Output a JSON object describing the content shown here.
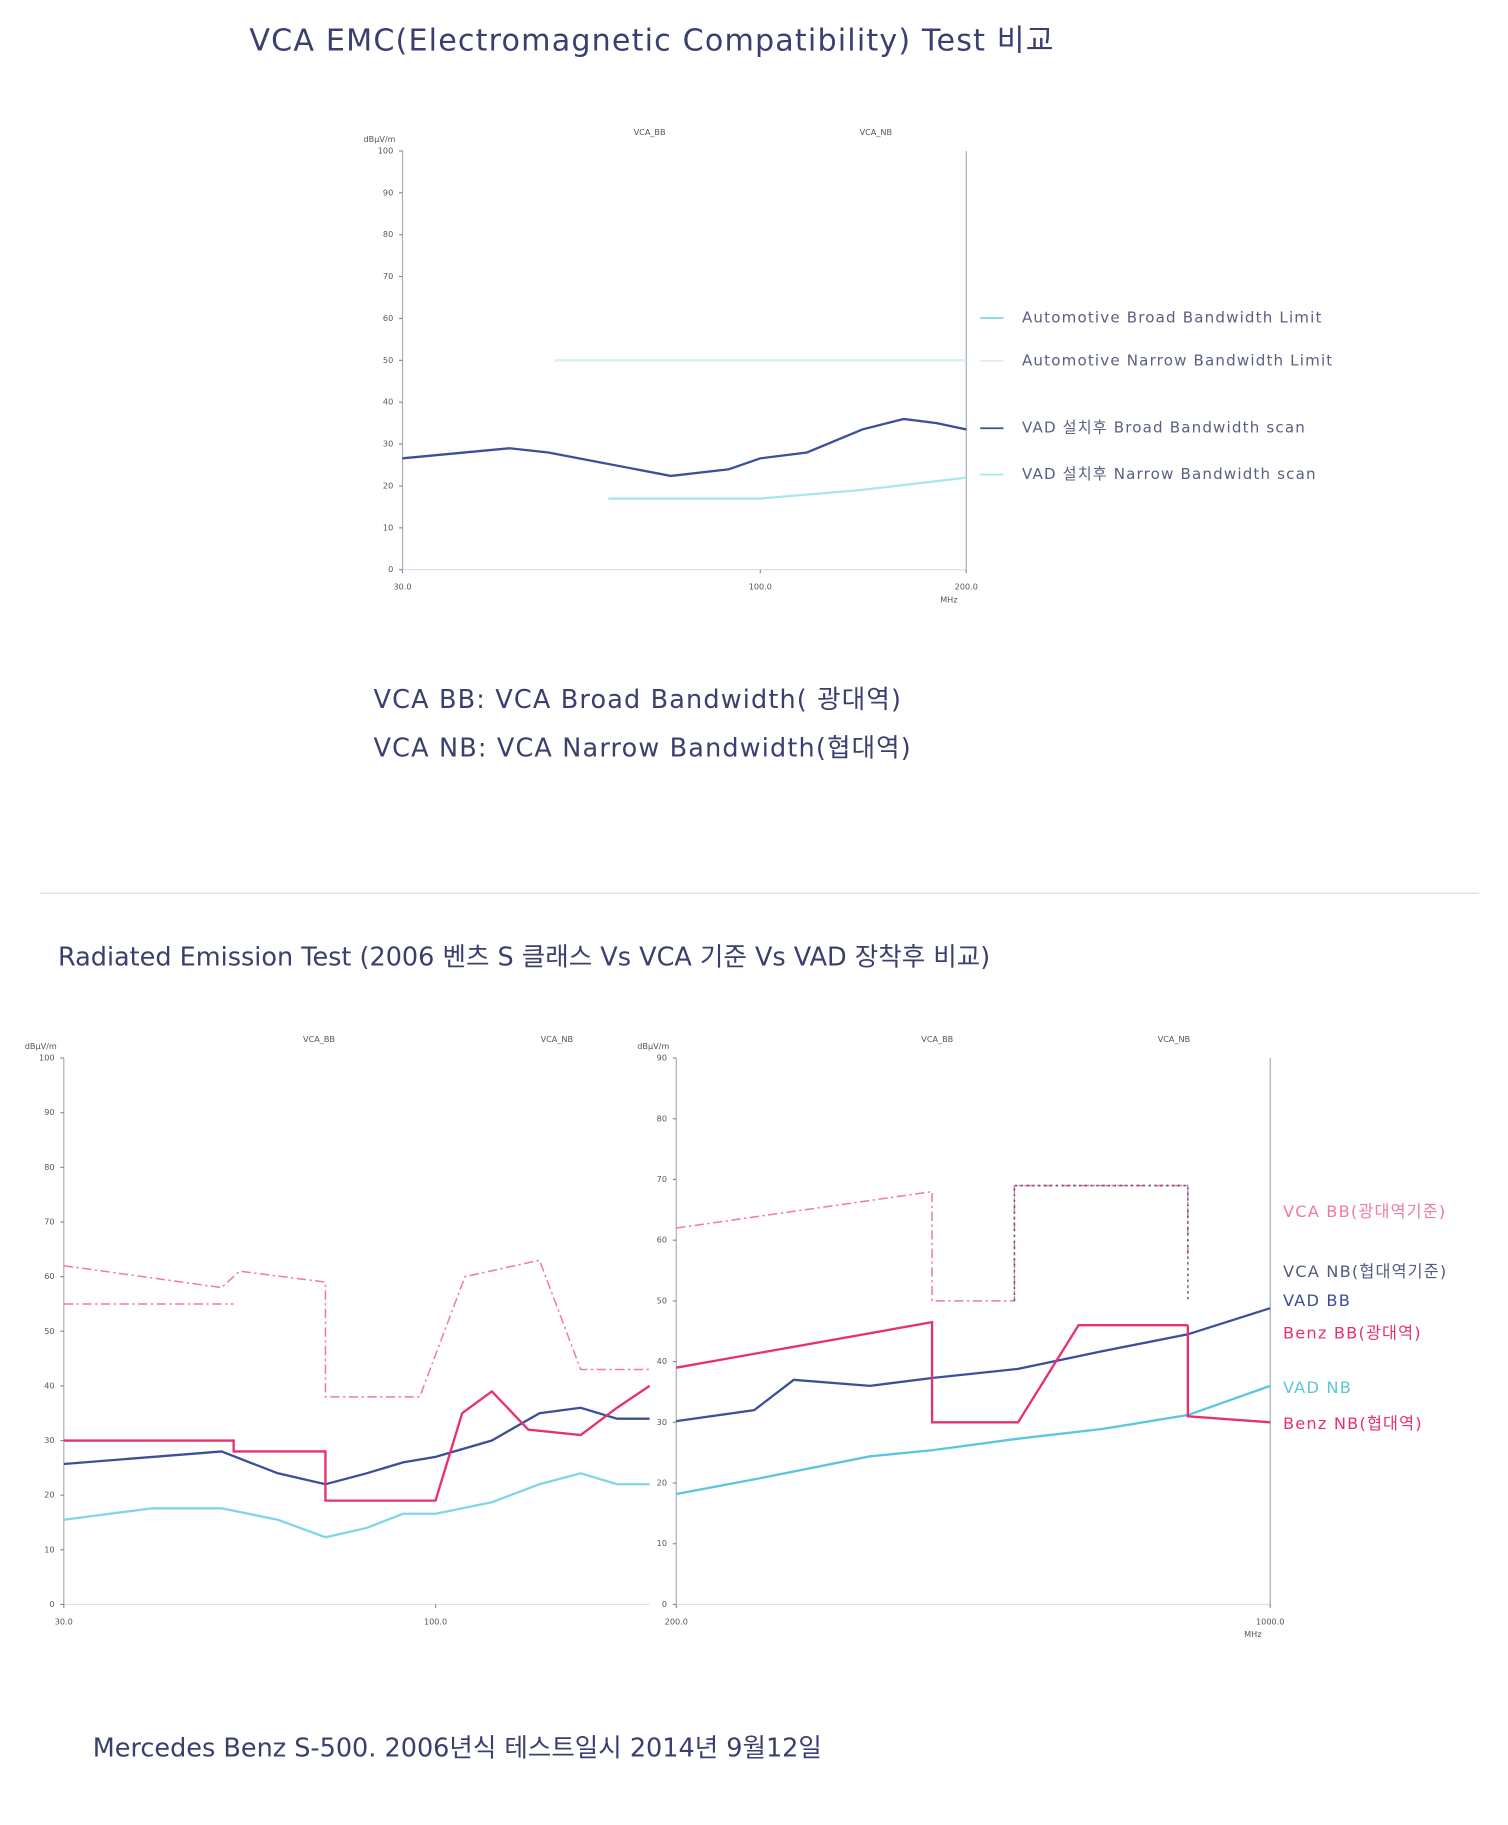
{
  "title": "VCA EMC(Electromagnetic Compatibility) Test 비교",
  "notes": [
    "VCA  BB:  VCA Broad Bandwidth( 광대역)",
    "VCA   NB: VCA Narrow Bandwidth(협대역)"
  ],
  "section_title": "Radiated Emission Test (2006 벤츠 S 클래스 Vs VCA 기준 Vs VAD 장착후 비교)",
  "footer": "Mercedes Benz S-500. 2006년식  테스트일시 2014년 9월12일",
  "chart_data": [
    {
      "type": "line",
      "y_label": "dBµV/m",
      "x_label": "MHz",
      "top_labels": [
        "VCA_BB",
        "VCA_NB"
      ],
      "xlim": [
        30,
        200
      ],
      "xscale": "log",
      "xticks": [
        {
          "value": 30,
          "label": "30.0"
        },
        {
          "value": 100,
          "label": "100.0"
        },
        {
          "value": 200,
          "label": "200.0"
        }
      ],
      "ylim": [
        0,
        100
      ],
      "yticks": [
        0,
        10,
        20,
        30,
        40,
        50,
        60,
        70,
        80,
        90,
        100
      ],
      "series": [
        {
          "name": "Automotive Broad Bandwidth Limit",
          "color": "#7fd6e6",
          "x": [
            30,
            200
          ],
          "values": [
            null,
            null
          ]
        },
        {
          "name": "Automotive Narrow  Bandwidth Limit",
          "color": "#d8eef2",
          "x": [
            50,
            200
          ],
          "values": [
            50,
            50
          ]
        },
        {
          "name": "VAD 설치후 Broad Bandwidth scan",
          "color": "#3b4f9a",
          "x": [
            30,
            43,
            49,
            74,
            90,
            100,
            117,
            141,
            162,
            181,
            200
          ],
          "values": [
            26.6,
            29,
            28,
            22.4,
            24,
            26.6,
            28,
            33.5,
            36,
            35,
            33.5
          ]
        },
        {
          "name": "VAD 설치후 Narrow Bandwidth scan",
          "color": "#a9e6f0",
          "x": [
            60,
            100,
            140,
            200
          ],
          "values": [
            17,
            17,
            19,
            22
          ]
        }
      ]
    },
    {
      "type": "line",
      "y_label": "dBµV/m",
      "top_labels": [
        "VCA_BB",
        "VCA_NB"
      ],
      "xlim": [
        30,
        200
      ],
      "xscale": "log",
      "xticks": [
        {
          "value": 30,
          "label": "30.0"
        },
        {
          "value": 100,
          "label": "100.0"
        }
      ],
      "ylim": [
        0,
        100
      ],
      "yticks": [
        0,
        10,
        20,
        30,
        40,
        50,
        60,
        70,
        80,
        90,
        100
      ],
      "series": [
        {
          "name": "VCA BB",
          "color": "#f07aa6",
          "dash": "dashdot",
          "x": [
            30,
            50,
            53,
            70,
            70,
            95,
            110,
            140,
            160,
            200
          ],
          "values": [
            62,
            58,
            61,
            59,
            38,
            38,
            60,
            63,
            43,
            43
          ]
        },
        {
          "name": "VCA NB",
          "color": "#f07aa6",
          "dash": "dashdot",
          "x": [
            30,
            52
          ],
          "values": [
            55,
            55
          ]
        },
        {
          "name": "VAD BB",
          "color": "#3b4f9a",
          "x": [
            30,
            40,
            50,
            60,
            70,
            80,
            90,
            100,
            120,
            140,
            160,
            180,
            200
          ],
          "values": [
            25.7,
            27,
            28,
            24,
            22,
            24,
            26,
            27,
            30,
            35,
            36,
            34,
            34
          ]
        },
        {
          "name": "Benz BB",
          "color": "#e8306c",
          "x": [
            30,
            52,
            52,
            70,
            70,
            100,
            109,
            120,
            135,
            160,
            180,
            200
          ],
          "values": [
            30,
            30,
            28,
            28,
            19,
            19,
            35,
            39,
            32,
            31,
            36,
            40
          ]
        },
        {
          "name": "VAD NB",
          "color": "#7fd6e6",
          "x": [
            30,
            40,
            50,
            60,
            70,
            80,
            90,
            100,
            120,
            140,
            160,
            180,
            200
          ],
          "values": [
            15.5,
            17.6,
            17.6,
            15.5,
            12.3,
            14,
            16.6,
            16.6,
            18.7,
            22,
            24,
            22,
            22
          ]
        }
      ]
    },
    {
      "type": "line",
      "y_label": "dBµV/m",
      "x_label": "MHz",
      "top_labels": [
        "VCA_BB",
        "VCA_NB"
      ],
      "xlim": [
        200,
        1000
      ],
      "xscale": "log",
      "xticks": [
        {
          "value": 200,
          "label": "200.0"
        },
        {
          "value": 1000,
          "label": "1000.0"
        }
      ],
      "ylim": [
        0,
        90
      ],
      "yticks": [
        0,
        10,
        20,
        30,
        40,
        50,
        60,
        70,
        80,
        90
      ],
      "series": [
        {
          "name": "VCA BB(광대역기준)",
          "color": "#f07aa6",
          "dash": "dashdot",
          "x": [
            200,
            400,
            400,
            500,
            500,
            800,
            800
          ],
          "values": [
            62,
            68,
            50,
            50,
            69,
            69,
            57
          ]
        },
        {
          "name": "VCA NB(협대역기준)",
          "color": "#555a80",
          "dash": "dot",
          "x": [
            500,
            500,
            800,
            800
          ],
          "values": [
            50,
            69,
            69,
            50
          ]
        },
        {
          "name": "VAD BB",
          "color": "#3b4f9a",
          "x": [
            200,
            247,
            275,
            338,
            400,
            505,
            634,
            800,
            1000
          ],
          "values": [
            30.2,
            32,
            37,
            36,
            37.3,
            38.8,
            41.7,
            44.5,
            48.8
          ]
        },
        {
          "name": "Benz BB(광대역)",
          "color": "#e8306c",
          "x": [
            200,
            400,
            400,
            505,
            595,
            800
          ],
          "values": [
            39,
            46.5,
            30,
            30,
            46,
            46
          ]
        },
        {
          "name": "VAD NB",
          "color": "#5cc6dc",
          "x": [
            200,
            247,
            338,
            400,
            505,
            634,
            800,
            1000
          ],
          "values": [
            18.2,
            20.6,
            24.4,
            25.4,
            27.3,
            28.9,
            31.2,
            36
          ]
        },
        {
          "name": "Benz NB(협대역)",
          "color": "#e8306c",
          "x": [
            800,
            800,
            1000
          ],
          "values": [
            46,
            31,
            30
          ]
        }
      ]
    }
  ]
}
